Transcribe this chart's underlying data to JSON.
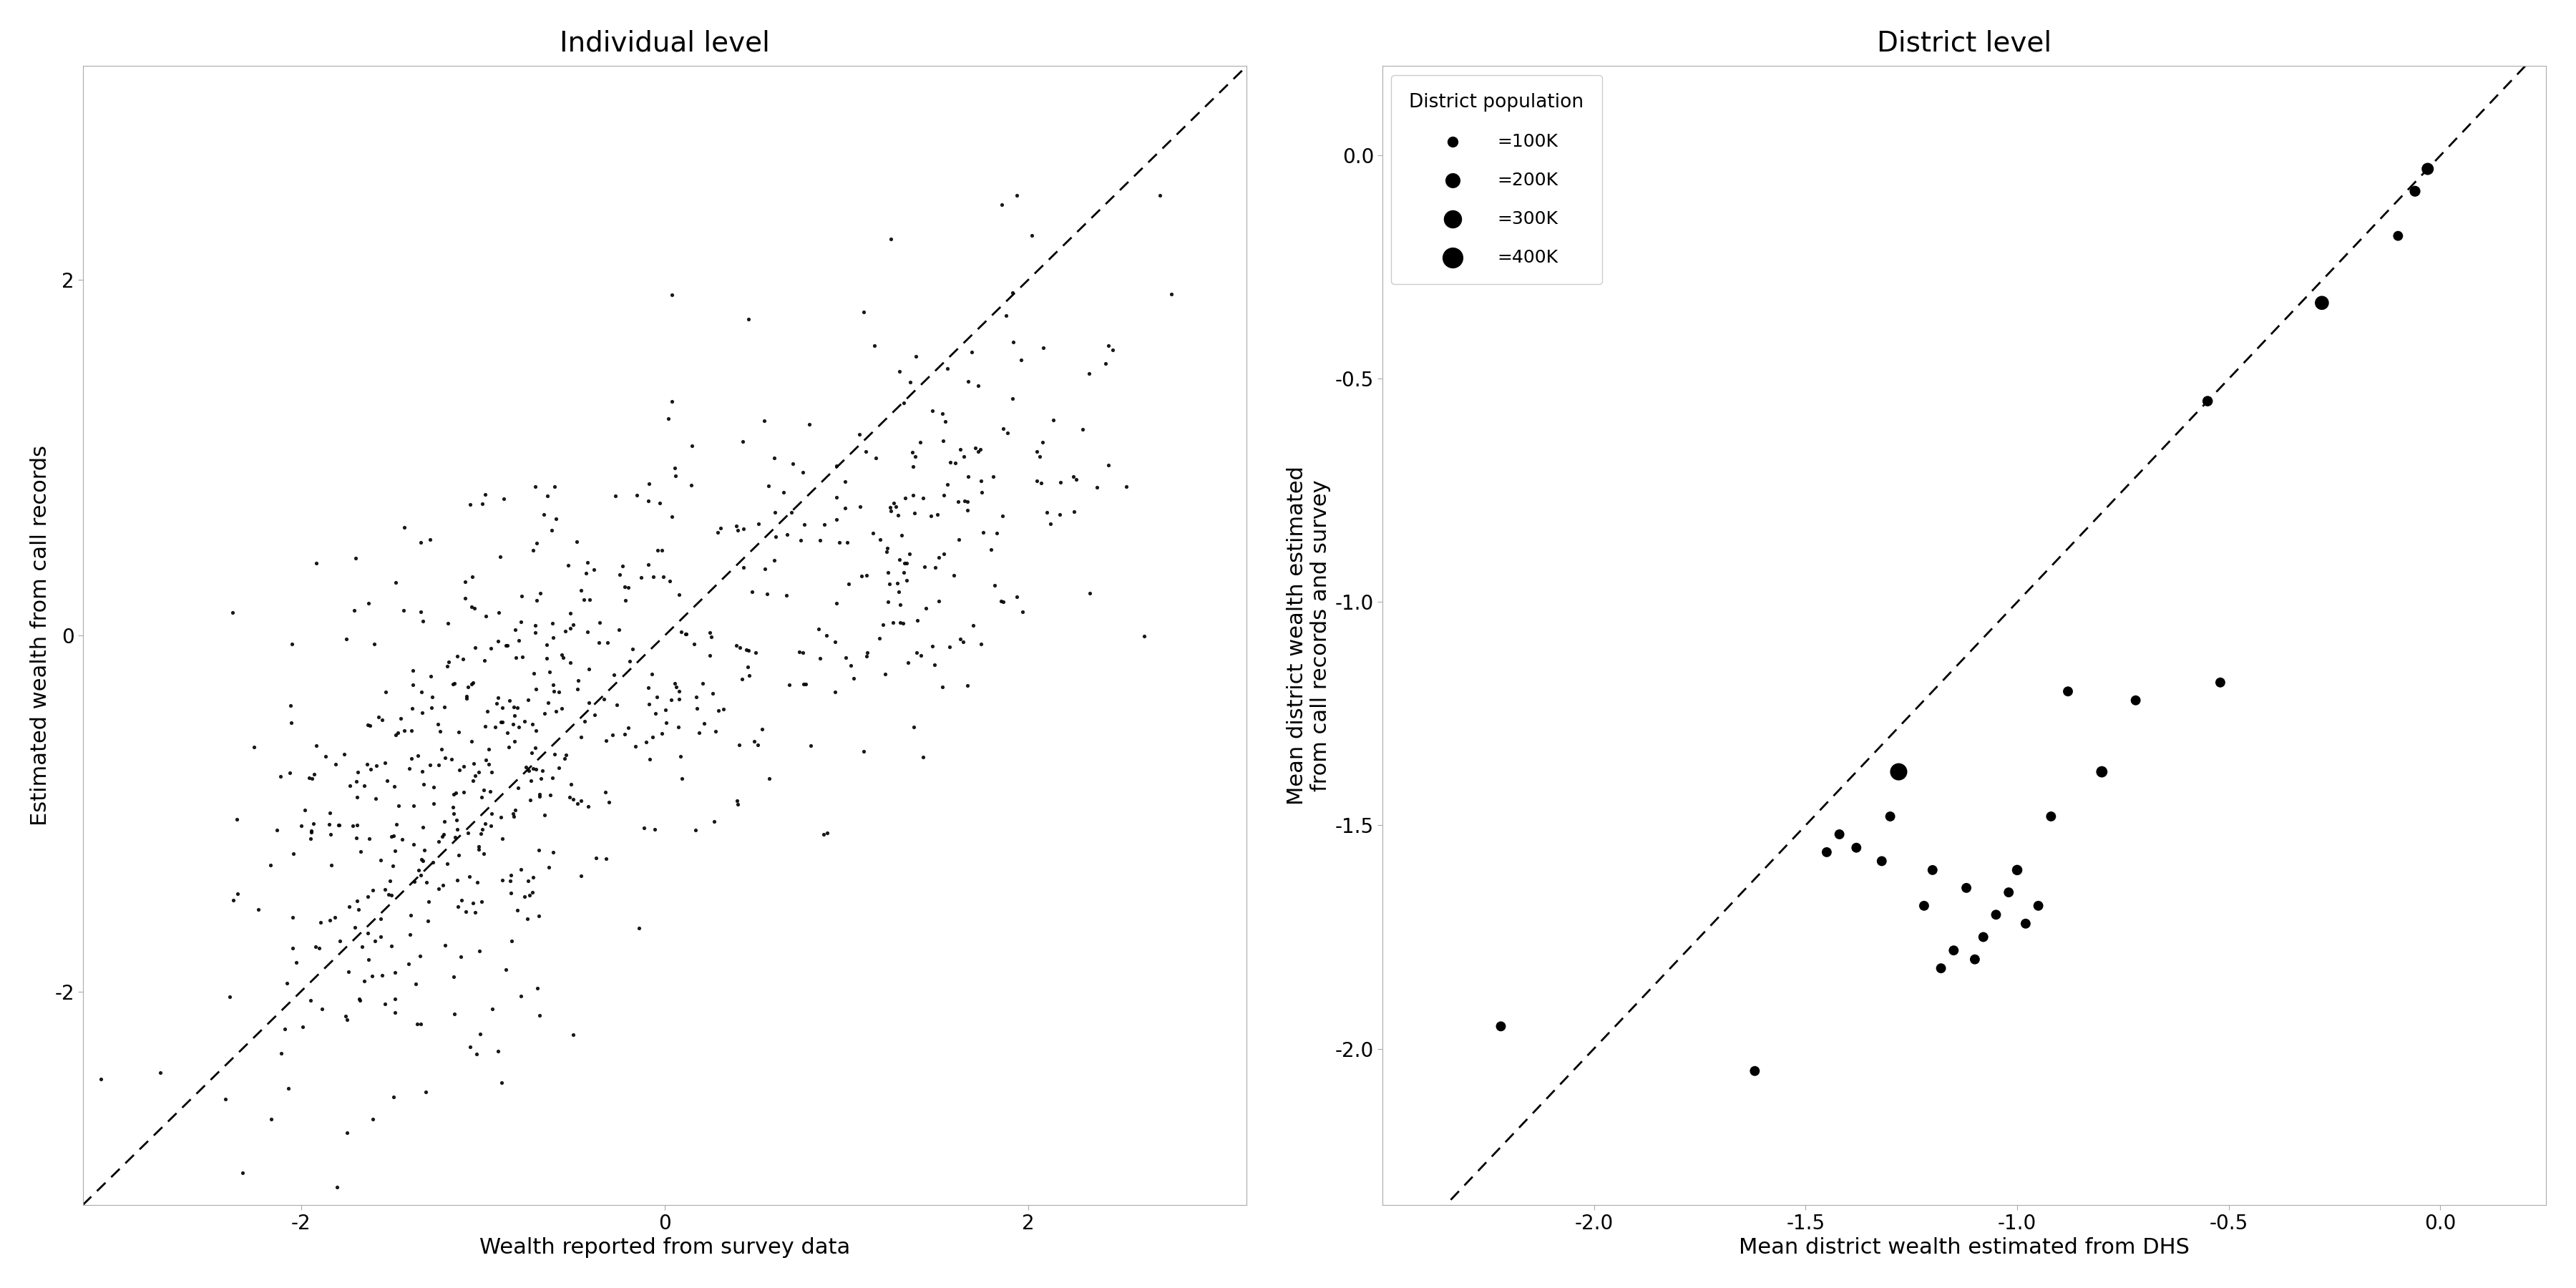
{
  "left_title": "Individual level",
  "left_xlabel": "Wealth reported from survey data",
  "left_ylabel": "Estimated wealth from call records",
  "left_xlim": [
    -3.2,
    3.2
  ],
  "left_ylim": [
    -3.2,
    3.2
  ],
  "left_xticks": [
    -2,
    0,
    2
  ],
  "left_yticks": [
    -2,
    0,
    2
  ],
  "right_title": "District level",
  "right_xlabel": "Mean district wealth estimated from DHS",
  "right_ylabel": "Mean district wealth estimated\nfrom call records and survey",
  "right_xlim": [
    -2.5,
    0.25
  ],
  "right_ylim": [
    -2.35,
    0.2
  ],
  "right_xticks": [
    -2.0,
    -1.5,
    -1.0,
    -0.5,
    0.0
  ],
  "right_yticks": [
    -2.0,
    -1.5,
    -1.0,
    -0.5,
    0.0
  ],
  "district_x": [
    -0.03,
    -0.06,
    -0.1,
    -0.28,
    -0.52,
    -0.55,
    -0.72,
    -0.8,
    -0.88,
    -0.92,
    -0.95,
    -0.98,
    -1.0,
    -1.02,
    -1.05,
    -1.08,
    -1.1,
    -1.12,
    -1.15,
    -1.18,
    -1.2,
    -1.22,
    -1.28,
    -1.3,
    -1.32,
    -1.38,
    -1.42,
    -1.45,
    -1.62,
    -2.22
  ],
  "district_y": [
    -0.03,
    -0.08,
    -0.18,
    -0.33,
    -1.18,
    -0.55,
    -1.22,
    -1.38,
    -1.2,
    -1.48,
    -1.68,
    -1.72,
    -1.6,
    -1.65,
    -1.7,
    -1.75,
    -1.8,
    -1.64,
    -1.78,
    -1.82,
    -1.6,
    -1.68,
    -1.38,
    -1.48,
    -1.58,
    -1.55,
    -1.52,
    -1.56,
    -2.05,
    -1.95
  ],
  "district_pop": [
    150000,
    120000,
    100000,
    200000,
    100000,
    110000,
    100000,
    130000,
    100000,
    100000,
    100000,
    100000,
    110000,
    100000,
    100000,
    100000,
    100000,
    100000,
    100000,
    100000,
    100000,
    100000,
    300000,
    100000,
    100000,
    100000,
    100000,
    100000,
    100000,
    100000
  ],
  "legend_sizes": [
    100000,
    200000,
    300000,
    400000
  ],
  "legend_labels": [
    "=100K",
    "=200K",
    "=300K",
    "=400K"
  ],
  "legend_title": "District population",
  "dot_color": "#000000",
  "bg_color": "#ffffff",
  "title_fontsize": 28,
  "label_fontsize": 22,
  "tick_fontsize": 20,
  "legend_fontsize": 18,
  "legend_title_fontsize": 19
}
